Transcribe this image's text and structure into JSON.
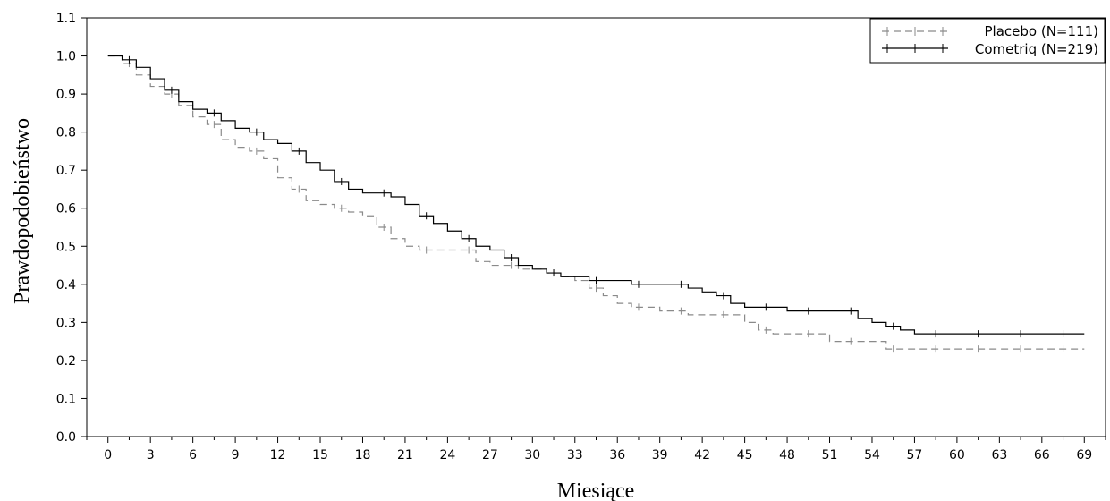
{
  "chart_data": {
    "type": "line",
    "xlabel": "Miesiące",
    "ylabel": "Prawdopodobieństwo",
    "x_ticks": [
      0,
      3,
      6,
      9,
      12,
      15,
      18,
      21,
      24,
      27,
      30,
      33,
      36,
      39,
      42,
      45,
      48,
      51,
      54,
      57,
      60,
      63,
      66,
      69
    ],
    "y_ticks": [
      "0.0",
      "0.1",
      "0.2",
      "0.3",
      "0.4",
      "0.5",
      "0.6",
      "0.7",
      "0.8",
      "0.9",
      "1.0",
      "1.1"
    ],
    "xlim": [
      -1.5,
      70.5
    ],
    "ylim": [
      0,
      1.1
    ],
    "grid": false,
    "legend_position": "top-right",
    "series": [
      {
        "name": "Placebo (N=111)",
        "color": "#8a8a8a",
        "line_style": "dashed",
        "censor_marks": true,
        "x": [
          0,
          1,
          2,
          3,
          4,
          5,
          6,
          7,
          8,
          9,
          10,
          11,
          12,
          13,
          14,
          15,
          16,
          17,
          18,
          19,
          20,
          21,
          22,
          23,
          24,
          25,
          26,
          27,
          28,
          29,
          30,
          31,
          32,
          33,
          34,
          35,
          36,
          37,
          38,
          39,
          40,
          41,
          42,
          43,
          44,
          45,
          46,
          47,
          48,
          49,
          50,
          51,
          52,
          53,
          54,
          55,
          56,
          57,
          58,
          59,
          60,
          61,
          62,
          63,
          64,
          65,
          66,
          67,
          68,
          69
        ],
        "y": [
          1.0,
          0.98,
          0.95,
          0.92,
          0.9,
          0.87,
          0.84,
          0.82,
          0.78,
          0.76,
          0.75,
          0.73,
          0.68,
          0.65,
          0.62,
          0.61,
          0.6,
          0.59,
          0.58,
          0.55,
          0.52,
          0.5,
          0.49,
          0.49,
          0.49,
          0.49,
          0.46,
          0.45,
          0.45,
          0.44,
          0.44,
          0.43,
          0.42,
          0.41,
          0.39,
          0.37,
          0.35,
          0.34,
          0.34,
          0.33,
          0.33,
          0.32,
          0.32,
          0.32,
          0.32,
          0.3,
          0.28,
          0.27,
          0.27,
          0.27,
          0.27,
          0.25,
          0.25,
          0.25,
          0.25,
          0.23,
          0.23,
          0.23,
          0.23,
          0.23,
          0.23,
          0.23,
          0.23,
          0.23,
          0.23,
          0.23,
          0.23,
          0.23,
          0.23,
          0.23
        ]
      },
      {
        "name": "Cometriq (N=219)",
        "color": "#000000",
        "line_style": "solid",
        "censor_marks": true,
        "x": [
          0,
          1,
          2,
          3,
          4,
          5,
          6,
          7,
          8,
          9,
          10,
          11,
          12,
          13,
          14,
          15,
          16,
          17,
          18,
          19,
          20,
          21,
          22,
          23,
          24,
          25,
          26,
          27,
          28,
          29,
          30,
          31,
          32,
          33,
          34,
          35,
          36,
          37,
          38,
          39,
          40,
          41,
          42,
          43,
          44,
          45,
          46,
          47,
          48,
          49,
          50,
          51,
          52,
          53,
          54,
          55,
          56,
          57,
          58,
          59,
          60,
          61,
          62,
          63,
          64,
          65,
          66,
          67,
          68,
          69
        ],
        "y": [
          1.0,
          0.99,
          0.97,
          0.94,
          0.91,
          0.88,
          0.86,
          0.85,
          0.83,
          0.81,
          0.8,
          0.78,
          0.77,
          0.75,
          0.72,
          0.7,
          0.67,
          0.65,
          0.64,
          0.64,
          0.63,
          0.61,
          0.58,
          0.56,
          0.54,
          0.52,
          0.5,
          0.49,
          0.47,
          0.45,
          0.44,
          0.43,
          0.42,
          0.42,
          0.41,
          0.41,
          0.41,
          0.4,
          0.4,
          0.4,
          0.4,
          0.39,
          0.38,
          0.37,
          0.35,
          0.34,
          0.34,
          0.34,
          0.33,
          0.33,
          0.33,
          0.33,
          0.33,
          0.31,
          0.3,
          0.29,
          0.28,
          0.27,
          0.27,
          0.27,
          0.27,
          0.27,
          0.27,
          0.27,
          0.27,
          0.27,
          0.27,
          0.27,
          0.27,
          0.27
        ]
      }
    ]
  }
}
